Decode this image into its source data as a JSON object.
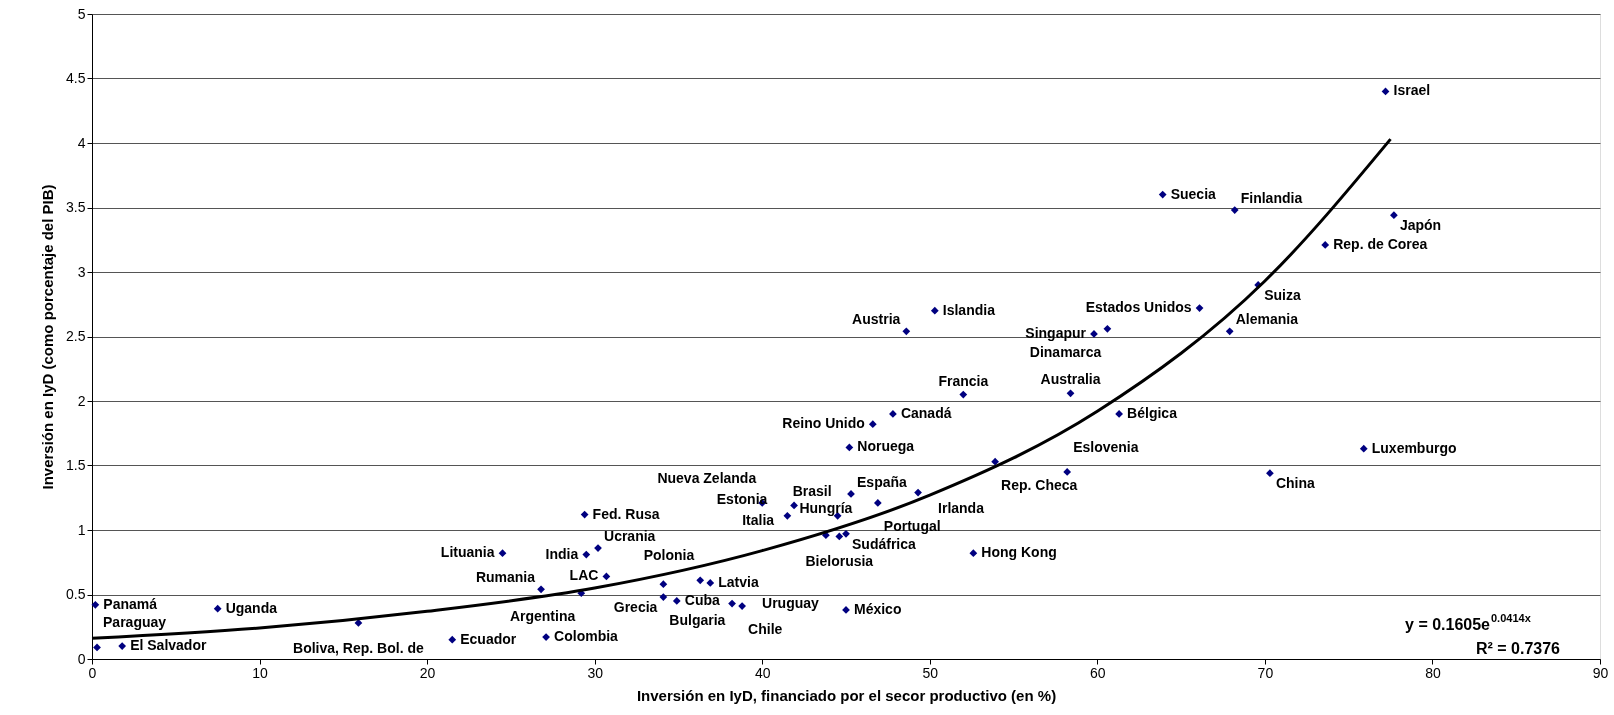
{
  "chart_data": {
    "type": "scatter",
    "xlabel": "Inversión en IyD, financiado por el secor productivo (en %)",
    "ylabel": "Inversión en IyD (como porcentaje del PIB)",
    "xlim": [
      0,
      90
    ],
    "xticks": [
      0,
      10,
      20,
      30,
      40,
      50,
      60,
      70,
      80,
      90
    ],
    "ylim": [
      0,
      5
    ],
    "yticks": [
      0,
      0.5,
      1,
      1.5,
      2,
      2.5,
      3,
      3.5,
      4,
      4.5,
      5
    ],
    "grid": "y",
    "series": [
      {
        "type": "scatter",
        "marker": "diamond",
        "color": "#000080",
        "x": [
          77.2,
          63.9,
          68.2,
          77.7,
          73.6,
          69.6,
          66.1,
          50.3,
          48.6,
          60.6,
          59.8,
          67.9,
          52.0,
          58.4,
          47.8,
          61.3,
          46.6,
          45.2,
          75.9,
          53.9,
          58.2,
          70.3,
          40.0,
          41.9,
          41.5,
          45.3,
          49.3,
          46.9,
          44.5,
          45.0,
          43.8,
          44.6,
          52.6,
          29.4,
          24.5,
          30.2,
          29.5,
          30.7,
          26.8,
          34.1,
          36.3,
          36.9,
          29.2,
          34.1,
          34.9,
          38.2,
          38.8,
          45.0,
          27.1,
          21.5,
          0.2,
          7.5,
          15.9,
          0.3,
          1.8
        ],
        "values": [
          4.4,
          3.6,
          3.48,
          3.44,
          3.21,
          2.9,
          2.72,
          2.7,
          2.54,
          2.56,
          2.52,
          2.54,
          2.05,
          2.06,
          1.9,
          1.9,
          1.82,
          1.64,
          1.63,
          1.53,
          1.45,
          1.44,
          1.21,
          1.19,
          1.11,
          1.28,
          1.29,
          1.21,
          1.11,
          0.97,
          0.96,
          0.95,
          0.82,
          1.12,
          0.82,
          0.86,
          0.81,
          0.64,
          0.54,
          0.58,
          0.61,
          0.59,
          0.51,
          0.48,
          0.45,
          0.43,
          0.41,
          0.38,
          0.17,
          0.15,
          0.42,
          0.39,
          0.28,
          0.09,
          0.1
        ],
        "value_labels": [
          "Israel",
          "Suecia",
          "Finlandia",
          "Japón",
          "Rep. de Corea",
          "Suiza",
          "Estados Unidos",
          "Islandia",
          "Austria",
          "Dinamarca",
          "Singapur",
          "Alemania",
          "Francia",
          "Australia",
          "Canadá",
          "Bélgica",
          "Reino Unido",
          "Noruega",
          "Luxemburgo",
          "Rep. Checa",
          "Eslovenia",
          "China",
          "Nueva Zelanda",
          "Italia",
          "Estonia",
          "España",
          "Irlanda",
          "Portugal",
          "Brasil",
          "Sudáfrica",
          "Hungría",
          "Bielorusia",
          "Hong Kong",
          "Fed. Rusa",
          "Lituania",
          "Ucrania",
          "India",
          "LAC",
          "Rumania",
          "Grecia",
          "Polonia",
          "Latvia",
          "Argentina",
          "Bulgaria",
          "Cuba",
          "Uruguay",
          "Chile",
          "México",
          "Colombia",
          "Ecuador",
          "Panamá",
          "Uganda",
          "Boliva, Rep. Bol. de",
          "Paraguay",
          "El Salvador"
        ]
      },
      {
        "type": "line",
        "color": "#000000",
        "x": [
          0,
          10,
          20,
          30,
          40,
          50,
          60,
          70,
          77.5
        ],
        "values": [
          0.16,
          0.24,
          0.37,
          0.55,
          0.84,
          1.27,
          1.92,
          2.93,
          4.03
        ]
      }
    ],
    "annotations": [
      "y = 0.1605e$^{0.0414x}$",
      "R² = 0.7376"
    ]
  }
}
